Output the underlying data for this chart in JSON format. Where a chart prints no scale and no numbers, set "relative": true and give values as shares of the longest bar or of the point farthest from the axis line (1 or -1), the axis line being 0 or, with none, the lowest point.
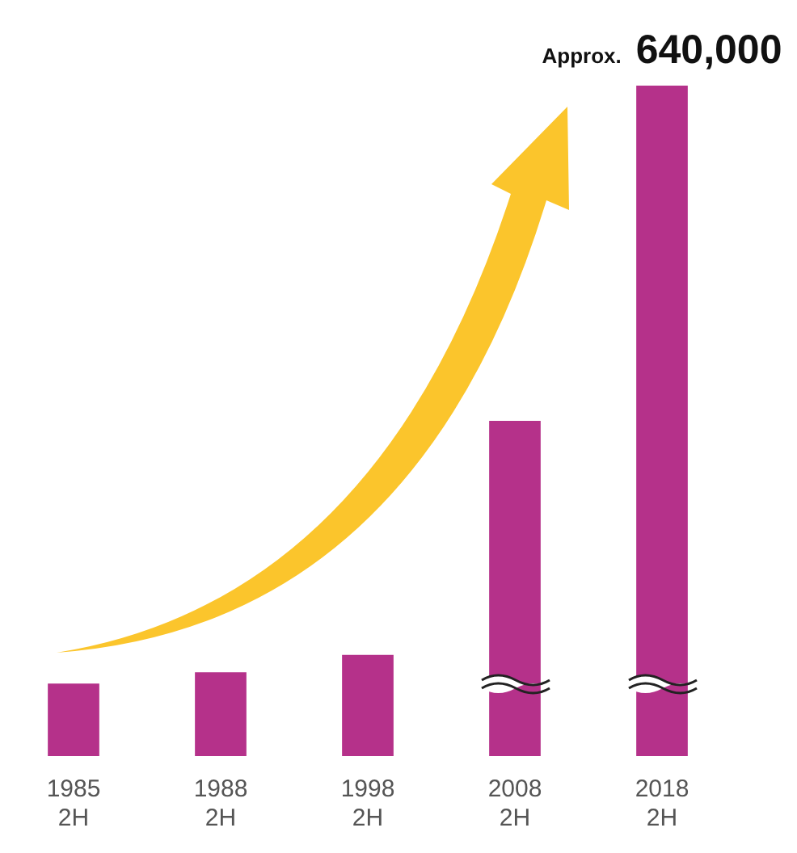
{
  "chart_data": {
    "type": "bar",
    "relative": true,
    "categories": [
      "1985 2H",
      "1988 2H",
      "1998 2H",
      "2008 2H",
      "2018 2H"
    ],
    "values": [
      0.108,
      0.125,
      0.151,
      0.5,
      1
    ],
    "color": "#b5318a",
    "annotations": [
      {
        "text": "Approx. 640,000",
        "x": "2018 2H",
        "y": 1
      }
    ],
    "grid": false,
    "legend": false
  }
}
